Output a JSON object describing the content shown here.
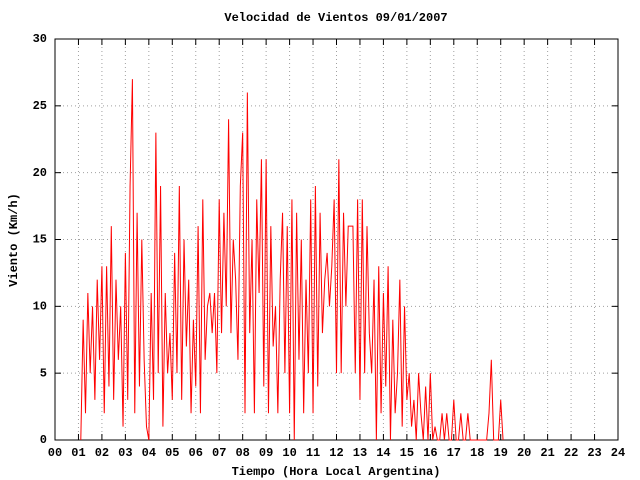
{
  "chart_data": {
    "type": "line",
    "title": "Velocidad de Vientos 09/01/2007",
    "xlabel": "Tiempo (Hora Local Argentina)",
    "ylabel": "Viento (Km/h)",
    "xlim": [
      0,
      24
    ],
    "ylim": [
      0,
      30
    ],
    "xticks": [
      {
        "value": 0,
        "label": "00"
      },
      {
        "value": 1,
        "label": "01"
      },
      {
        "value": 2,
        "label": "02"
      },
      {
        "value": 3,
        "label": "03"
      },
      {
        "value": 4,
        "label": "04"
      },
      {
        "value": 5,
        "label": "05"
      },
      {
        "value": 6,
        "label": "06"
      },
      {
        "value": 7,
        "label": "07"
      },
      {
        "value": 8,
        "label": "08"
      },
      {
        "value": 9,
        "label": "09"
      },
      10,
      11,
      12,
      13,
      14,
      15,
      16,
      17,
      18,
      19,
      20,
      21,
      22,
      23,
      24
    ],
    "yticks": [
      0,
      5,
      10,
      15,
      20,
      25,
      30
    ],
    "grid": true,
    "series": [
      {
        "color": "#ff0000",
        "x": [
          1.1,
          1.2,
          1.3,
          1.4,
          1.5,
          1.6,
          1.7,
          1.8,
          1.9,
          2.0,
          2.1,
          2.2,
          2.3,
          2.4,
          2.5,
          2.6,
          2.7,
          2.8,
          2.9,
          3.0,
          3.1,
          3.2,
          3.3,
          3.4,
          3.5,
          3.6,
          3.7,
          3.8,
          3.9,
          4.0,
          4.1,
          4.2,
          4.3,
          4.4,
          4.5,
          4.6,
          4.7,
          4.8,
          4.9,
          5.0,
          5.1,
          5.2,
          5.3,
          5.4,
          5.5,
          5.6,
          5.7,
          5.8,
          5.9,
          6.0,
          6.1,
          6.2,
          6.3,
          6.4,
          6.5,
          6.6,
          6.7,
          6.8,
          6.9,
          7.0,
          7.1,
          7.2,
          7.3,
          7.4,
          7.5,
          7.6,
          7.7,
          7.8,
          7.9,
          8.0,
          8.1,
          8.2,
          8.3,
          8.4,
          8.5,
          8.6,
          8.7,
          8.8,
          8.9,
          9.0,
          9.1,
          9.2,
          9.3,
          9.4,
          9.5,
          9.6,
          9.7,
          9.8,
          9.9,
          10.0,
          10.1,
          10.2,
          10.3,
          10.4,
          10.5,
          10.6,
          10.7,
          10.8,
          10.9,
          11.0,
          11.1,
          11.2,
          11.3,
          11.4,
          11.5,
          11.6,
          11.7,
          11.8,
          11.9,
          12.0,
          12.1,
          12.2,
          12.3,
          12.4,
          12.5,
          12.6,
          12.7,
          12.8,
          12.9,
          13.0,
          13.1,
          13.2,
          13.3,
          13.4,
          13.5,
          13.6,
          13.7,
          13.8,
          13.9,
          14.0,
          14.1,
          14.2,
          14.3,
          14.4,
          14.5,
          14.6,
          14.7,
          14.8,
          14.9,
          15.0,
          15.1,
          15.2,
          15.3,
          15.4,
          15.5,
          15.6,
          15.7,
          15.8,
          15.9,
          16.0,
          16.1,
          16.2,
          16.3,
          16.4,
          16.5,
          16.6,
          16.7,
          16.8,
          16.9,
          17.0,
          17.1,
          17.2,
          17.3,
          17.4,
          17.5,
          17.6,
          17.7,
          17.8,
          17.9,
          18.0,
          18.1,
          18.2,
          18.3,
          18.4,
          18.5,
          18.6,
          18.7,
          18.8,
          18.9,
          19.0,
          19.1
        ],
        "values": [
          0,
          9,
          2,
          11,
          5,
          10,
          3,
          12,
          6,
          13,
          2,
          13,
          4,
          16,
          3,
          12,
          6,
          10,
          1,
          14,
          3,
          19,
          27,
          2,
          17,
          4,
          15,
          6,
          1,
          0,
          11,
          3,
          23,
          5,
          19,
          1,
          11,
          5,
          8,
          3,
          14,
          5,
          19,
          3,
          15,
          7,
          12,
          2,
          9,
          4,
          16,
          2,
          18,
          6,
          10,
          11,
          8,
          11,
          5,
          18,
          8,
          17,
          10,
          24,
          8,
          15,
          12,
          6,
          19,
          23,
          2,
          26,
          8,
          15,
          2,
          18,
          11,
          21,
          4,
          21,
          2,
          16,
          7,
          10,
          2,
          12,
          17,
          5,
          16,
          2,
          18,
          0,
          17,
          6,
          15,
          2,
          12,
          5,
          18,
          2,
          19,
          4,
          17,
          8,
          12,
          14,
          10,
          13,
          18,
          5,
          21,
          5,
          17,
          10,
          16,
          16,
          16,
          5,
          18,
          3,
          18,
          5,
          16,
          8,
          5,
          12,
          0,
          13,
          2,
          11,
          4,
          13,
          0,
          9,
          2,
          5,
          12,
          1,
          10,
          3,
          5,
          1,
          3,
          0,
          5,
          2,
          0,
          4,
          0,
          5,
          0,
          1,
          0,
          0,
          2,
          0,
          2,
          0,
          0,
          3,
          0,
          0,
          2,
          0,
          0,
          2,
          0,
          0,
          0,
          0,
          0,
          0,
          0,
          0,
          2,
          6,
          0,
          0,
          0,
          3,
          0
        ]
      }
    ]
  }
}
